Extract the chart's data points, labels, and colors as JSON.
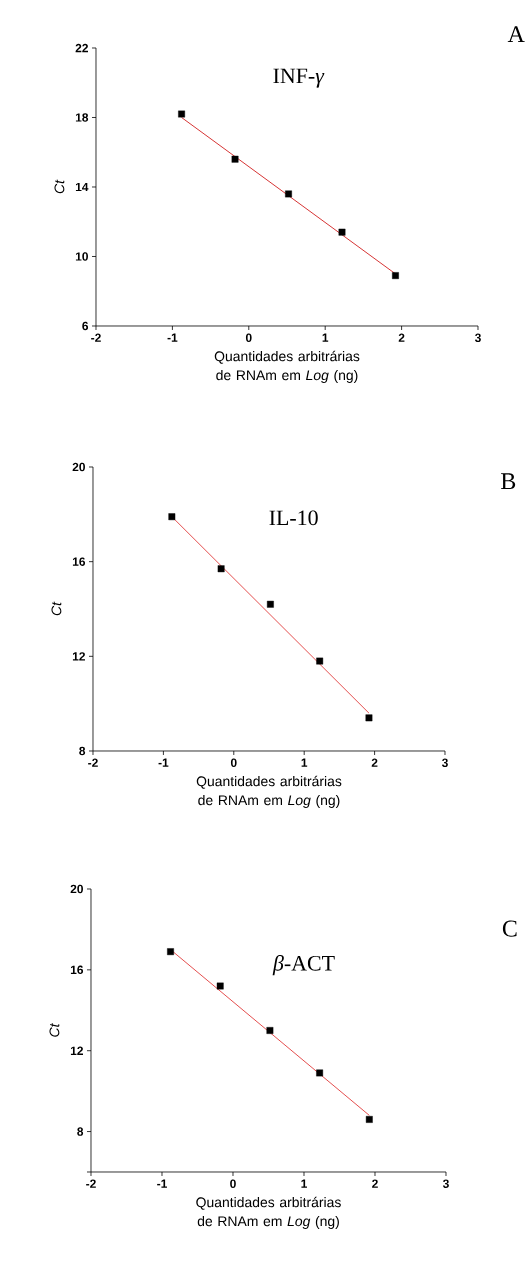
{
  "chart_data": [
    {
      "type": "scatter",
      "title": "INF-*γ*",
      "xlabel": "Quantidades arbitrárias de RNAm em *Log* (ng)",
      "ylabel": "Ct",
      "annotations": [
        "A"
      ],
      "xlim": [
        -2,
        3
      ],
      "xticks": [
        -2,
        -1,
        0,
        1,
        2,
        3
      ],
      "ylim": [
        6,
        22
      ],
      "yticks": [
        6,
        10,
        14,
        18,
        22
      ],
      "series": [
        {
          "type": "scatter",
          "color": "#000000",
          "x": [
            -0.88,
            -0.18,
            0.52,
            1.22,
            1.92
          ],
          "values": [
            18.2,
            15.6,
            13.6,
            11.4,
            8.9
          ],
          "marker": "square"
        },
        {
          "type": "line",
          "color": "#cc0000",
          "line_style": "solid",
          "x": [
            -0.88,
            1.92
          ],
          "values": [
            18.0,
            9.0
          ],
          "marker": "none"
        }
      ]
    },
    {
      "type": "scatter",
      "title": "IL-10",
      "xlabel": "Quantidades arbitrárias de RNAm em *Log* (ng)",
      "ylabel": "Ct",
      "annotations": [
        "B"
      ],
      "xlim": [
        -2,
        3
      ],
      "xticks": [
        -2,
        -1,
        0,
        1,
        2,
        3
      ],
      "ylim": [
        8,
        20
      ],
      "yticks": [
        8,
        12,
        16,
        20
      ],
      "series": [
        {
          "type": "scatter",
          "color": "#000000",
          "x": [
            -0.88,
            -0.18,
            0.52,
            1.22,
            1.92
          ],
          "values": [
            17.9,
            15.7,
            14.2,
            11.8,
            9.4
          ],
          "marker": "square"
        },
        {
          "type": "line",
          "color": "#dd2222",
          "line_style": "solid",
          "x": [
            -0.88,
            1.92
          ],
          "values": [
            17.9,
            9.6
          ],
          "marker": "none"
        }
      ]
    },
    {
      "type": "scatter",
      "title": "*β*-ACT",
      "xlabel": "Quantidades arbitrárias de RNAm em *Log* (ng)",
      "ylabel": "Ct",
      "annotations": [
        "C"
      ],
      "xlim": [
        -2,
        3
      ],
      "xticks": [
        -2,
        -1,
        0,
        1,
        2,
        3
      ],
      "ylim": [
        6,
        20
      ],
      "yticks": [
        {
          "value": 6,
          "label": null
        },
        8,
        12,
        16,
        20
      ],
      "series": [
        {
          "type": "scatter",
          "color": "#000000",
          "x": [
            -0.88,
            -0.18,
            0.52,
            1.22,
            1.92
          ],
          "values": [
            16.9,
            15.2,
            13.0,
            10.9,
            8.6
          ],
          "marker": "square"
        },
        {
          "type": "line",
          "color": "#dd2222",
          "line_style": "solid",
          "x": [
            -0.88,
            1.92
          ],
          "values": [
            17.0,
            8.8
          ],
          "marker": "none"
        }
      ]
    }
  ]
}
